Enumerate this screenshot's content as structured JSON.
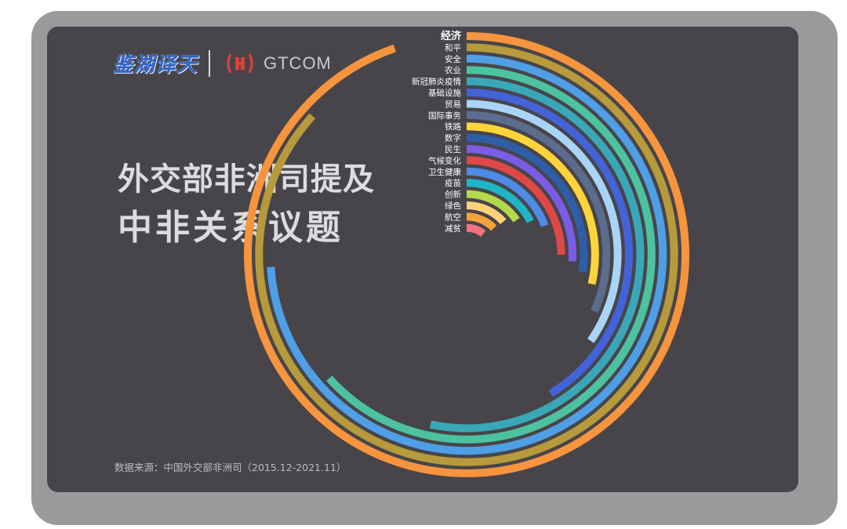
{
  "header": {
    "brand_cn": "鉴湖译天",
    "brand_en": "GTCOM"
  },
  "title": {
    "line1": "外交部非洲司提及",
    "line2": "中非关系议题"
  },
  "source": "数据来源：中国外交部非洲司（2015.12-2021.11）",
  "colors": {
    "card_background": "#47454a",
    "frame": "#9a9a9c",
    "brand_blue": "#2f63c6",
    "gtcom_red": "#e0403a"
  },
  "chart_data": {
    "type": "radial-bar",
    "title": "外交部非洲司提及 中非关系议题",
    "categories": [
      "经济",
      "和平",
      "安全",
      "农业",
      "新冠肺炎疫情",
      "基础设施",
      "贸易",
      "国际事务",
      "铁路",
      "数字",
      "民生",
      "气候变化",
      "卫生健康",
      "疫苗",
      "创新",
      "绿色",
      "航空",
      "减贫"
    ],
    "values": [
      284,
      260,
      222,
      190,
      160,
      124,
      104,
      95,
      86,
      82,
      78,
      75,
      58,
      52,
      46,
      40,
      38,
      32
    ],
    "colors": [
      "#f7943e",
      "#b79a3c",
      "#4f9fe6",
      "#4cc2a1",
      "#3aa7b9",
      "#4363d8",
      "#a9d4f7",
      "#5c6c8c",
      "#ffd43b",
      "#2e5ea8",
      "#7a5ce6",
      "#e04848",
      "#4d8be6",
      "#1fb5c7",
      "#b3d94a",
      "#ffd27a",
      "#f5a33a",
      "#f27380"
    ],
    "label_note": "bars are arcs starting at 12 o'clock and running clockwise; value is proportional to the arc angle"
  }
}
